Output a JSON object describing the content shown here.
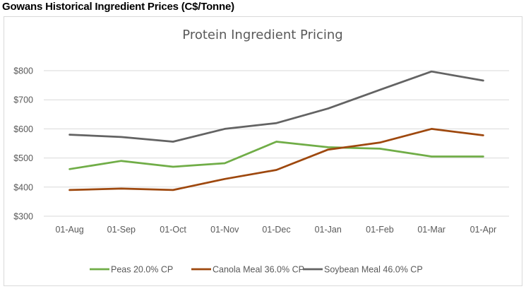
{
  "page": {
    "heading": "Gowans Historical Ingredient Prices (C$/Tonne)"
  },
  "chart_data": {
    "type": "line",
    "title": "Protein Ingredient Pricing",
    "xlabel": "",
    "ylabel": "",
    "categories": [
      "01-Aug",
      "01-Sep",
      "01-Oct",
      "01-Nov",
      "01-Dec",
      "01-Jan",
      "01-Feb",
      "01-Mar",
      "01-Apr"
    ],
    "ylim": [
      300,
      800
    ],
    "yticks": [
      300,
      400,
      500,
      600,
      700,
      800
    ],
    "ytick_labels": [
      "$300",
      "$400",
      "$500",
      "$600",
      "$700",
      "$800"
    ],
    "grid": true,
    "legend_position": "bottom",
    "series": [
      {
        "name": "Peas 20.0% CP",
        "color": "#70ad47",
        "values": [
          462,
          490,
          470,
          482,
          556,
          537,
          532,
          505,
          505
        ]
      },
      {
        "name": "Canola Meal 36.0% CP",
        "color": "#9e480e",
        "values": [
          390,
          395,
          390,
          428,
          459,
          529,
          553,
          600,
          578
        ]
      },
      {
        "name": "Soybean Meal 46.0% CP",
        "color": "#636363",
        "values": [
          580,
          572,
          556,
          600,
          620,
          670,
          734,
          797,
          766
        ]
      }
    ]
  }
}
